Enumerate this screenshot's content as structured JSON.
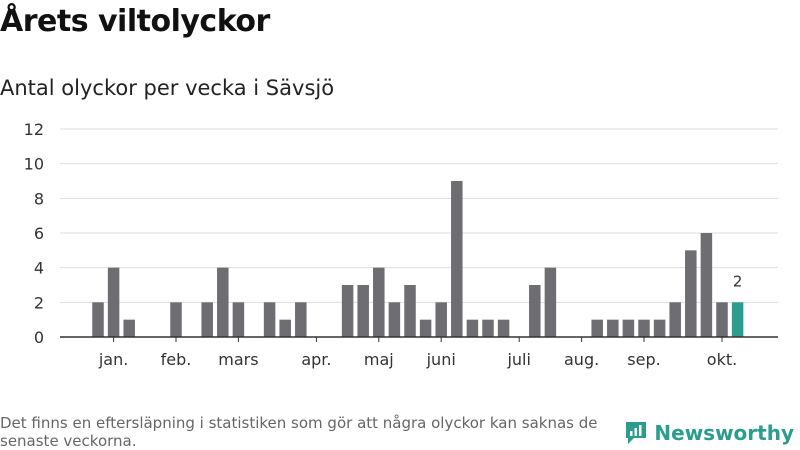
{
  "title": "Årets viltolyckor",
  "subtitle": "Antal olyckor per vecka i Sävsjö",
  "footnote": "Det finns en eftersläpning i statistiken som gör att några olyckor kan saknas de senaste veckorna.",
  "logo_text": "Newsworthy",
  "colors": {
    "bar": "#6d6d72",
    "highlight": "#2a9d8f",
    "grid": "#dddddd",
    "axis": "#333333"
  },
  "chart_data": {
    "type": "bar",
    "x": [
      1,
      2,
      3,
      4,
      5,
      6,
      7,
      8,
      9,
      10,
      11,
      12,
      13,
      14,
      15,
      16,
      17,
      18,
      19,
      20,
      21,
      22,
      23,
      24,
      25,
      26,
      27,
      28,
      29,
      30,
      31,
      32,
      33,
      34,
      35,
      36,
      37,
      38,
      39,
      40,
      41,
      42,
      43,
      44
    ],
    "values": [
      0,
      2,
      4,
      1,
      0,
      0,
      2,
      0,
      2,
      4,
      2,
      0,
      2,
      1,
      2,
      0,
      0,
      3,
      3,
      4,
      2,
      3,
      1,
      2,
      9,
      1,
      1,
      1,
      0,
      3,
      4,
      0,
      0,
      1,
      1,
      1,
      1,
      1,
      2,
      5,
      6,
      2,
      2,
      0
    ],
    "highlight_index": 42,
    "data_labels": [
      {
        "index": 42,
        "text": "2"
      }
    ],
    "month_ticks": [
      {
        "label": "jan.",
        "week": 3
      },
      {
        "label": "feb.",
        "week": 7
      },
      {
        "label": "mars",
        "week": 11
      },
      {
        "label": "apr.",
        "week": 16
      },
      {
        "label": "maj",
        "week": 20
      },
      {
        "label": "juni",
        "week": 24
      },
      {
        "label": "juli",
        "week": 29
      },
      {
        "label": "aug.",
        "week": 33
      },
      {
        "label": "sep.",
        "week": 37
      },
      {
        "label": "okt.",
        "week": 42
      }
    ],
    "yticks": [
      "0",
      "2",
      "4",
      "6",
      "8",
      "10",
      "12"
    ],
    "ylim": [
      0,
      12
    ],
    "grid": true,
    "xlabel": "",
    "ylabel": ""
  }
}
